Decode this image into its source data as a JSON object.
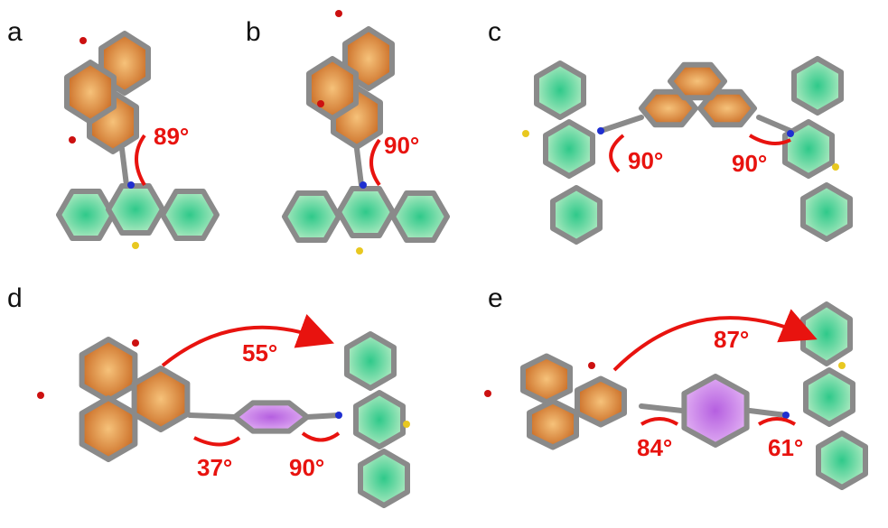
{
  "panels": [
    {
      "label": "a",
      "angles": [
        "89°"
      ]
    },
    {
      "label": "b",
      "angles": [
        "90°"
      ]
    },
    {
      "label": "c",
      "angles": [
        "90°",
        "90°"
      ]
    },
    {
      "label": "d",
      "angles": [
        "55°",
        "37°",
        "90°"
      ]
    },
    {
      "label": "e",
      "angles": [
        "87°",
        "84°",
        "61°"
      ]
    }
  ],
  "colors": {
    "orange_ring": "#d2691e",
    "green_ring": "#3ec98f",
    "purple_ring": "#c77be8",
    "bond": "#8a8a8a",
    "angle_mark": "#e8130f",
    "nitrogen": "#1f2fd0",
    "sulfur": "#e8c820",
    "oxygen": "#cc1010"
  }
}
